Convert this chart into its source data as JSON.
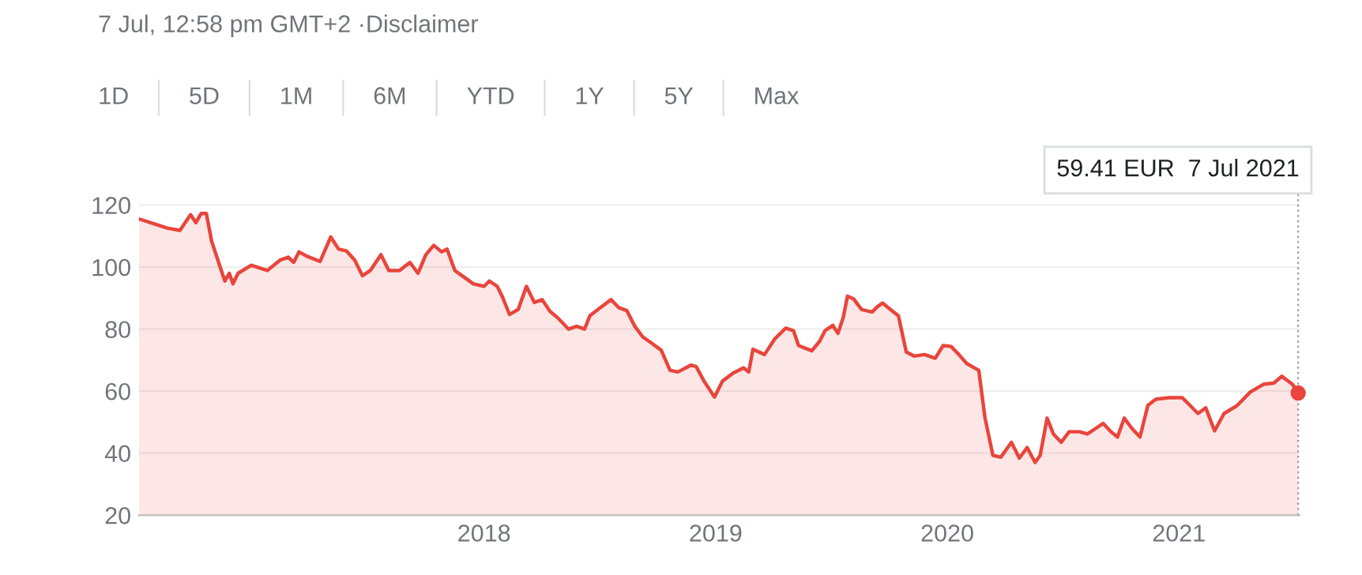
{
  "chart_data": {
    "type": "area",
    "annotations": [
      "7 Jul, 12:58 pm GMT+2 ·Disclaimer",
      "1D",
      "5D",
      "1M",
      "6M",
      "YTD",
      "1Y",
      "5Y",
      "Max",
      "59.41 EUR  7 Jul 2021"
    ],
    "series": [
      {
        "color": "#e8453c",
        "x": [
          2016.511,
          2016.573,
          2016.63,
          2016.687,
          2016.733,
          2016.756,
          2016.779,
          2016.801,
          2016.824,
          2016.858,
          2016.881,
          2016.9,
          2016.916,
          2016.938,
          2016.995,
          2017.064,
          2017.121,
          2017.155,
          2017.178,
          2017.201,
          2017.235,
          2017.292,
          2017.338,
          2017.372,
          2017.406,
          2017.441,
          2017.475,
          2017.509,
          2017.555,
          2017.589,
          2017.635,
          2017.68,
          2017.715,
          2017.749,
          2017.783,
          2017.817,
          2017.84,
          2017.874,
          2017.909,
          2017.954,
          2018.0,
          2018.023,
          2018.057,
          2018.08,
          2018.11,
          2018.148,
          2018.183,
          2018.217,
          2018.251,
          2018.285,
          2018.32,
          2018.365,
          2018.4,
          2018.434,
          2018.457,
          2018.502,
          2018.548,
          2018.582,
          2018.616,
          2018.651,
          2018.685,
          2018.719,
          2018.765,
          2018.803,
          2018.837,
          2018.871,
          2018.893,
          2018.916,
          2018.95,
          2018.995,
          2019.029,
          2019.075,
          2019.12,
          2019.143,
          2019.161,
          2019.211,
          2019.256,
          2019.302,
          2019.336,
          2019.358,
          2019.415,
          2019.449,
          2019.472,
          2019.506,
          2019.528,
          2019.551,
          2019.569,
          2019.596,
          2019.63,
          2019.676,
          2019.698,
          2019.721,
          2019.755,
          2019.789,
          2019.823,
          2019.857,
          2019.902,
          2019.948,
          2019.982,
          2020.016,
          2020.05,
          2020.084,
          2020.136,
          2020.163,
          2020.197,
          2020.231,
          2020.277,
          2020.311,
          2020.345,
          2020.379,
          2020.401,
          2020.431,
          2020.458,
          2020.492,
          2020.526,
          2020.571,
          2020.605,
          2020.639,
          2020.673,
          2020.707,
          2020.735,
          2020.764,
          2020.798,
          2020.832,
          2020.866,
          2020.9,
          2020.957,
          2021.014,
          2021.048,
          2021.082,
          2021.116,
          2021.154,
          2021.195,
          2021.252,
          2021.308,
          2021.365,
          2021.41,
          2021.444,
          2021.49,
          2021.515
        ],
        "values": [
          115.5,
          114,
          112.6,
          111.8,
          116.9,
          114.3,
          117.3,
          117.3,
          108.3,
          100.6,
          95.5,
          98,
          94.6,
          98,
          100.6,
          98.9,
          102.3,
          103.2,
          101.5,
          104.9,
          103.5,
          101.8,
          109.7,
          105.8,
          105.2,
          102.3,
          97.2,
          98.9,
          104,
          98.9,
          98.9,
          101.5,
          98,
          104,
          107,
          104.9,
          105.8,
          98.9,
          97,
          94.6,
          93.8,
          95.5,
          93.8,
          90.3,
          84.7,
          86.4,
          93.8,
          88.6,
          89.5,
          85.7,
          83.5,
          80,
          80.9,
          80,
          84.3,
          86.9,
          89.5,
          86.9,
          86,
          80.9,
          77.5,
          75.7,
          73.2,
          66.7,
          66.2,
          67.5,
          68.4,
          67.9,
          63.2,
          58.1,
          63.2,
          65.8,
          67.5,
          66.2,
          73.5,
          71.8,
          76.9,
          80.3,
          79.5,
          74.7,
          73,
          76.1,
          79.5,
          81.2,
          78.6,
          83.8,
          90.6,
          89.7,
          86.3,
          85.5,
          87.2,
          88.4,
          86.3,
          84.3,
          72.6,
          71.3,
          71.8,
          70.6,
          74.7,
          74.4,
          71.8,
          68.9,
          66.7,
          51.3,
          39.3,
          38.7,
          43.5,
          38.4,
          41.8,
          37,
          39.3,
          51.3,
          46.2,
          43.5,
          46.9,
          46.9,
          46.2,
          47.9,
          49.6,
          46.9,
          45.2,
          51.3,
          47.9,
          45.2,
          55.4,
          57.4,
          57.9,
          57.9,
          55.4,
          52.8,
          54.6,
          47.2,
          52.8,
          55.4,
          59.7,
          62.2,
          62.6,
          64.8,
          62.2,
          59.4
        ]
      }
    ],
    "xlim": [
      2016.51,
      2021.52
    ],
    "xticks": [
      2018,
      2019,
      2020,
      2021
    ],
    "ylim": [
      20,
      124
    ],
    "yticks": [
      20,
      40,
      60,
      80,
      100,
      120
    ],
    "grid": "y",
    "marker": "none",
    "line_style": "solid",
    "ref_lines": [
      {
        "axis": "x",
        "value": 2021.515,
        "color": "#9e9e9e",
        "line_style": "dotted"
      }
    ]
  }
}
